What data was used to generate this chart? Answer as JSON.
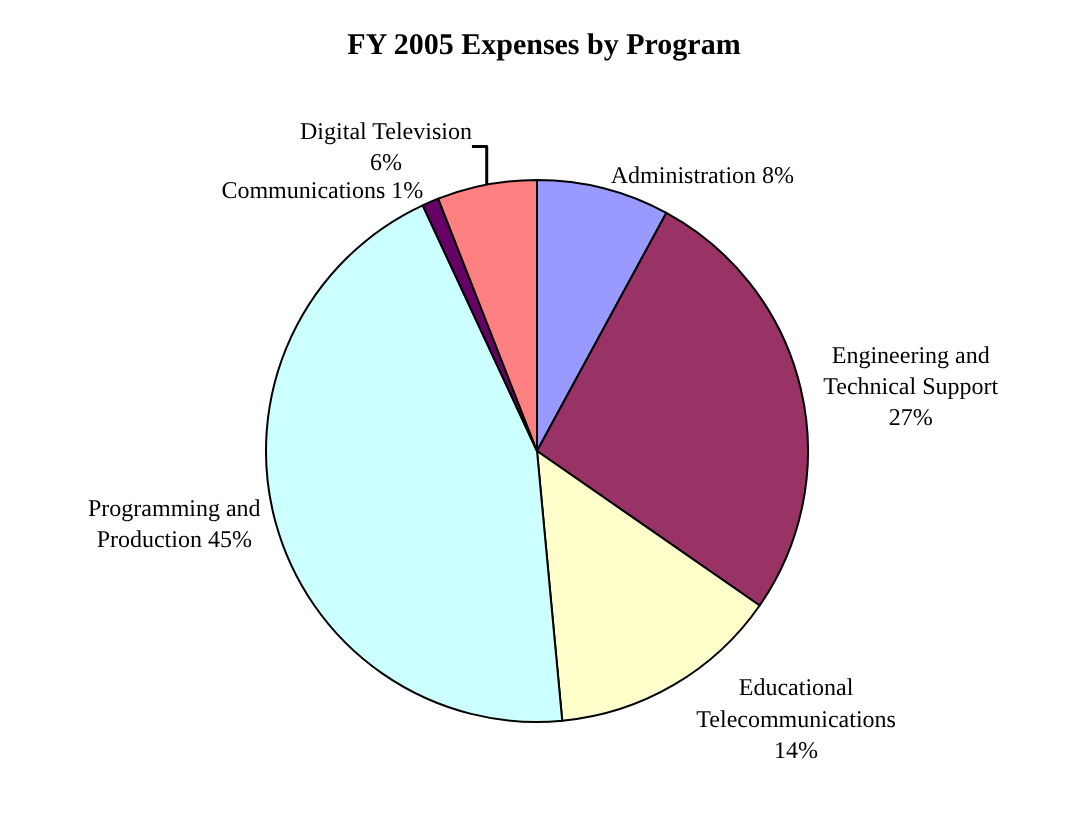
{
  "chart_data": {
    "type": "pie",
    "title": "FY 2005 Expenses by Program",
    "categories": [
      "Administration",
      "Engineering and Technical Support",
      "Educational Telecommunications",
      "Programming and Production",
      "Communications",
      "Digital Television"
    ],
    "values": [
      8,
      27,
      14,
      45,
      1,
      6
    ],
    "value_labels": [
      "8%",
      "27%",
      "14%",
      "45%",
      "1%",
      "6%"
    ],
    "colors": [
      "#9999ff",
      "#993366",
      "#ffffcc",
      "#ccffff",
      "#660066",
      "#ff8080"
    ],
    "legend": false
  }
}
